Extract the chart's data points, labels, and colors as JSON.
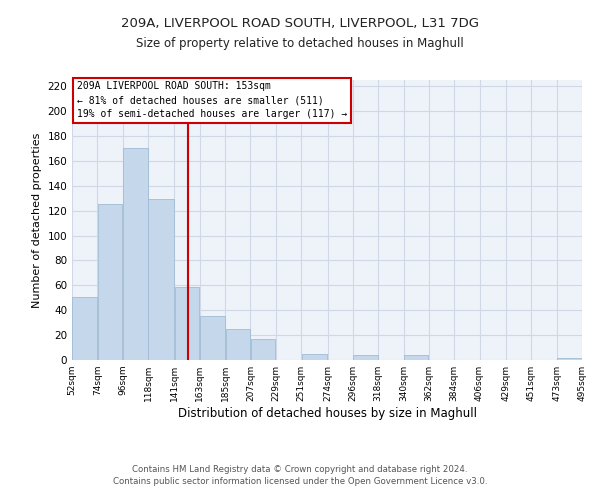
{
  "title": "209A, LIVERPOOL ROAD SOUTH, LIVERPOOL, L31 7DG",
  "subtitle": "Size of property relative to detached houses in Maghull",
  "xlabel": "Distribution of detached houses by size in Maghull",
  "ylabel": "Number of detached properties",
  "bar_left_edges": [
    52,
    74,
    96,
    118,
    141,
    163,
    185,
    207,
    229,
    251,
    274,
    296,
    318,
    340,
    362,
    384,
    406,
    429,
    451,
    473
  ],
  "bar_widths": [
    22,
    22,
    22,
    23,
    22,
    22,
    22,
    22,
    22,
    23,
    22,
    22,
    22,
    22,
    22,
    22,
    23,
    22,
    22,
    22
  ],
  "bar_heights": [
    51,
    125,
    170,
    129,
    59,
    35,
    25,
    17,
    0,
    5,
    0,
    4,
    0,
    4,
    0,
    0,
    0,
    0,
    0,
    2
  ],
  "bar_color": "#c5d8eb",
  "bar_edge_color": "#a0bcd4",
  "vline_x": 153,
  "vline_color": "#cc0000",
  "annotation_lines": [
    "209A LIVERPOOL ROAD SOUTH: 153sqm",
    "← 81% of detached houses are smaller (511)",
    "19% of semi-detached houses are larger (117) →"
  ],
  "annotation_box_edge_color": "#cc0000",
  "tick_labels": [
    "52sqm",
    "74sqm",
    "96sqm",
    "118sqm",
    "141sqm",
    "163sqm",
    "185sqm",
    "207sqm",
    "229sqm",
    "251sqm",
    "274sqm",
    "296sqm",
    "318sqm",
    "340sqm",
    "362sqm",
    "384sqm",
    "406sqm",
    "429sqm",
    "451sqm",
    "473sqm",
    "495sqm"
  ],
  "ylim": [
    0,
    225
  ],
  "yticks": [
    0,
    20,
    40,
    60,
    80,
    100,
    120,
    140,
    160,
    180,
    200,
    220
  ],
  "grid_color": "#d0d8e8",
  "bg_color": "#eef2f9",
  "footer_line1": "Contains HM Land Registry data © Crown copyright and database right 2024.",
  "footer_line2": "Contains public sector information licensed under the Open Government Licence v3.0.",
  "figsize": [
    6.0,
    5.0
  ],
  "dpi": 100
}
